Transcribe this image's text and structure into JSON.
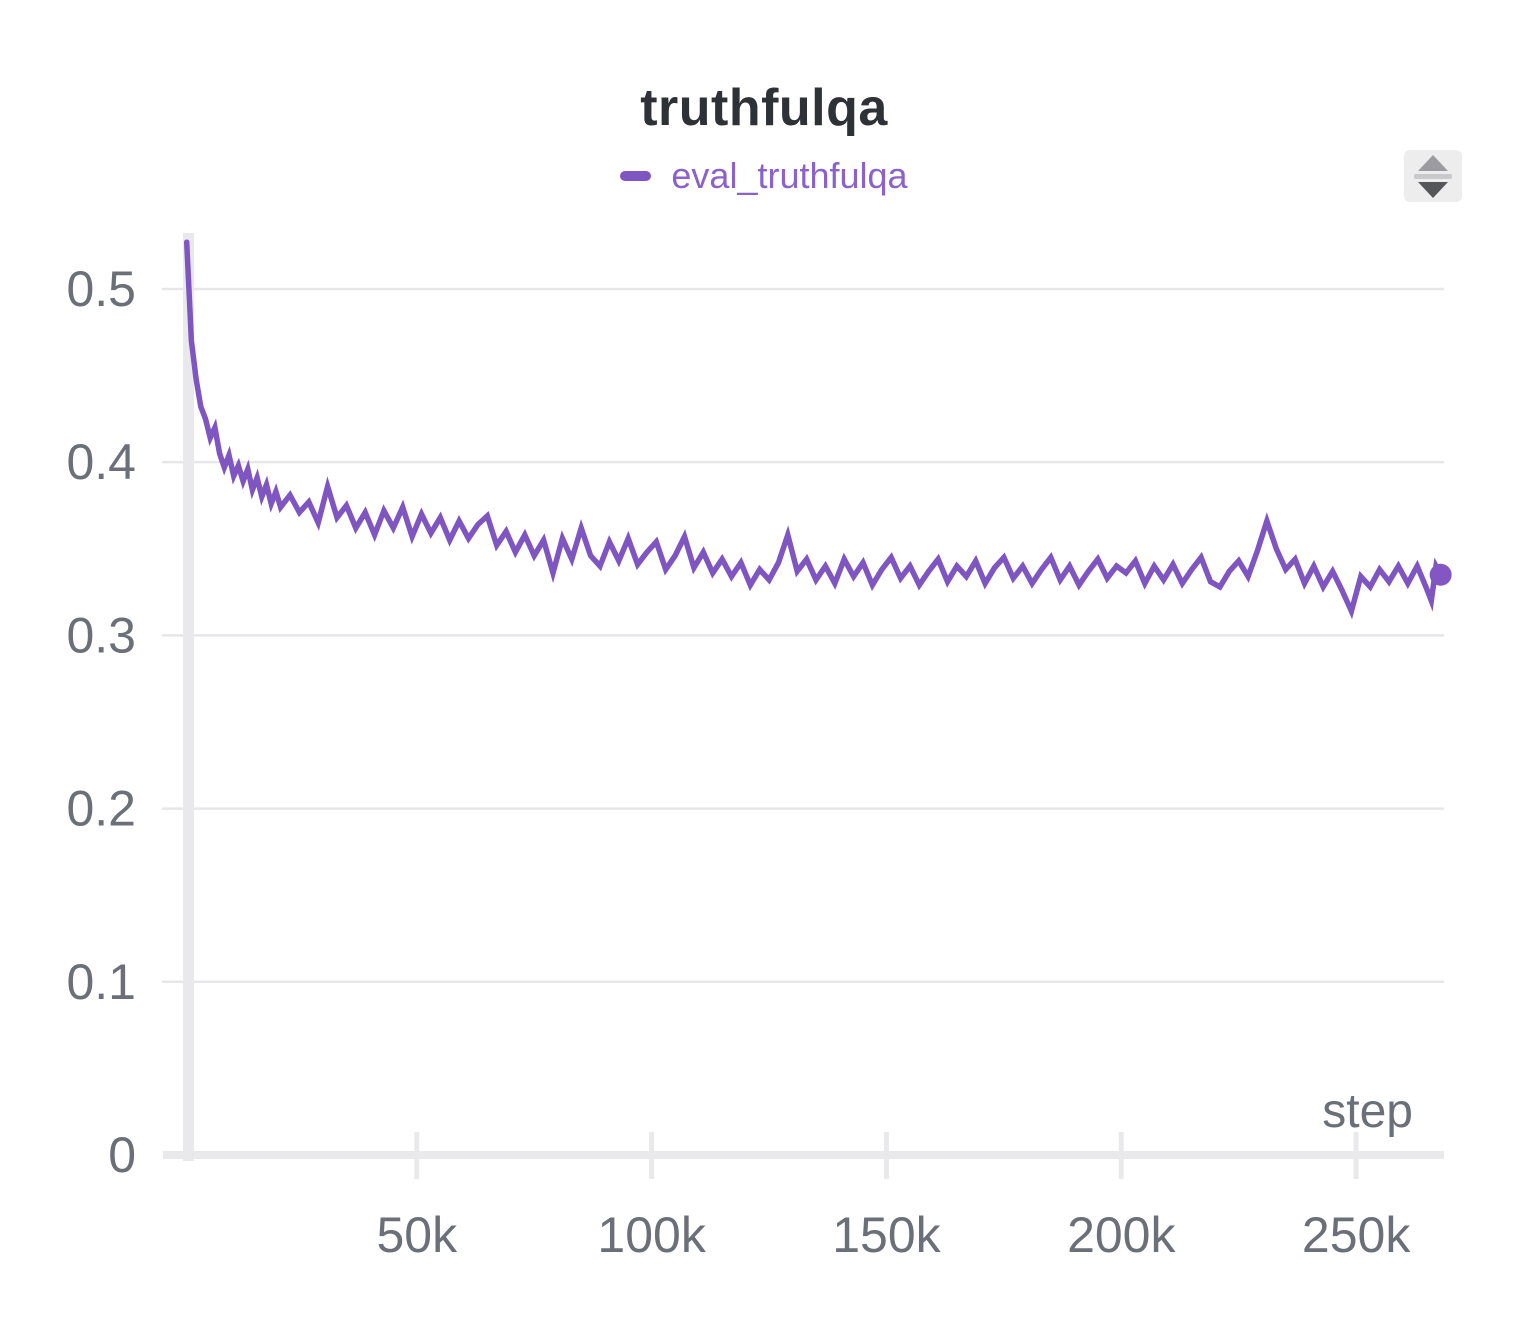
{
  "panel": {
    "title": "truthfulqa"
  },
  "legend": {
    "label": "eval_truthfulqa",
    "text_color": "#8a62ca",
    "swatch_color": "#7e55c1"
  },
  "controls": {
    "resize_icon": "sort-resize-handle"
  },
  "colors": {
    "title": "#2e3237",
    "axis_label": "#6b6f78",
    "gridline": "#e7e7e9",
    "axis_bar": "#e9e9eb",
    "line": "#7e55c1",
    "endpoint": "#8257c4",
    "icon_bg": "#ededed"
  },
  "chart_data": {
    "type": "line",
    "title": "truthfulqa",
    "xlabel": "step",
    "ylabel": "",
    "legend_position": "top-center",
    "grid": "horizontal-y",
    "xlim": [
      0,
      268500
    ],
    "ylim": [
      0,
      0.5323
    ],
    "x_ticks": [
      {
        "value": 50000,
        "label": "50k"
      },
      {
        "value": 100000,
        "label": "100k"
      },
      {
        "value": 150000,
        "label": "150k"
      },
      {
        "value": 200000,
        "label": "200k"
      },
      {
        "value": 250000,
        "label": "250k"
      }
    ],
    "y_ticks": [
      {
        "value": 0,
        "label": "0"
      },
      {
        "value": 0.1,
        "label": "0.1"
      },
      {
        "value": 0.2,
        "label": "0.2"
      },
      {
        "value": 0.3,
        "label": "0.3"
      },
      {
        "value": 0.4,
        "label": "0.4"
      },
      {
        "value": 0.5,
        "label": "0.5"
      }
    ],
    "series": [
      {
        "name": "eval_truthfulqa",
        "color": "#7e55c1",
        "end_marker": true,
        "final_value": 0.335,
        "points": [
          [
            1000,
            0.527
          ],
          [
            2000,
            0.47
          ],
          [
            3000,
            0.448
          ],
          [
            4000,
            0.432
          ],
          [
            5000,
            0.425
          ],
          [
            6000,
            0.414
          ],
          [
            7000,
            0.42
          ],
          [
            8000,
            0.405
          ],
          [
            9000,
            0.397
          ],
          [
            10000,
            0.404
          ],
          [
            11000,
            0.392
          ],
          [
            12000,
            0.398
          ],
          [
            13000,
            0.389
          ],
          [
            14000,
            0.396
          ],
          [
            15000,
            0.384
          ],
          [
            16000,
            0.391
          ],
          [
            17000,
            0.38
          ],
          [
            18000,
            0.387
          ],
          [
            19000,
            0.376
          ],
          [
            20000,
            0.383
          ],
          [
            21000,
            0.374
          ],
          [
            23000,
            0.381
          ],
          [
            25000,
            0.371
          ],
          [
            27000,
            0.377
          ],
          [
            29000,
            0.365
          ],
          [
            31000,
            0.386
          ],
          [
            33000,
            0.368
          ],
          [
            35000,
            0.375
          ],
          [
            37000,
            0.362
          ],
          [
            39000,
            0.371
          ],
          [
            41000,
            0.358
          ],
          [
            43000,
            0.372
          ],
          [
            45000,
            0.362
          ],
          [
            47000,
            0.374
          ],
          [
            49000,
            0.357
          ],
          [
            51000,
            0.37
          ],
          [
            53000,
            0.359
          ],
          [
            55000,
            0.368
          ],
          [
            57000,
            0.355
          ],
          [
            59000,
            0.366
          ],
          [
            61000,
            0.356
          ],
          [
            63000,
            0.364
          ],
          [
            65000,
            0.369
          ],
          [
            67000,
            0.352
          ],
          [
            69000,
            0.36
          ],
          [
            71000,
            0.348
          ],
          [
            73000,
            0.358
          ],
          [
            75000,
            0.346
          ],
          [
            77000,
            0.355
          ],
          [
            79000,
            0.336
          ],
          [
            81000,
            0.356
          ],
          [
            83000,
            0.344
          ],
          [
            85000,
            0.362
          ],
          [
            87000,
            0.346
          ],
          [
            89000,
            0.34
          ],
          [
            91000,
            0.354
          ],
          [
            93000,
            0.343
          ],
          [
            95000,
            0.356
          ],
          [
            97000,
            0.341
          ],
          [
            99000,
            0.348
          ],
          [
            101000,
            0.354
          ],
          [
            103000,
            0.338
          ],
          [
            105000,
            0.346
          ],
          [
            107000,
            0.357
          ],
          [
            109000,
            0.339
          ],
          [
            111000,
            0.348
          ],
          [
            113000,
            0.336
          ],
          [
            115000,
            0.344
          ],
          [
            117000,
            0.334
          ],
          [
            119000,
            0.342
          ],
          [
            121000,
            0.329
          ],
          [
            123000,
            0.338
          ],
          [
            125000,
            0.332
          ],
          [
            127000,
            0.342
          ],
          [
            129000,
            0.358
          ],
          [
            131000,
            0.337
          ],
          [
            133000,
            0.344
          ],
          [
            135000,
            0.332
          ],
          [
            137000,
            0.34
          ],
          [
            139000,
            0.33
          ],
          [
            141000,
            0.344
          ],
          [
            143000,
            0.334
          ],
          [
            145000,
            0.342
          ],
          [
            147000,
            0.329
          ],
          [
            149000,
            0.338
          ],
          [
            151000,
            0.345
          ],
          [
            153000,
            0.333
          ],
          [
            155000,
            0.34
          ],
          [
            157000,
            0.329
          ],
          [
            159000,
            0.337
          ],
          [
            161000,
            0.344
          ],
          [
            163000,
            0.331
          ],
          [
            165000,
            0.34
          ],
          [
            167000,
            0.334
          ],
          [
            169000,
            0.343
          ],
          [
            171000,
            0.33
          ],
          [
            173000,
            0.339
          ],
          [
            175000,
            0.345
          ],
          [
            177000,
            0.333
          ],
          [
            179000,
            0.34
          ],
          [
            181000,
            0.33
          ],
          [
            183000,
            0.338
          ],
          [
            185000,
            0.345
          ],
          [
            187000,
            0.332
          ],
          [
            189000,
            0.34
          ],
          [
            191000,
            0.329
          ],
          [
            193000,
            0.337
          ],
          [
            195000,
            0.344
          ],
          [
            197000,
            0.333
          ],
          [
            199000,
            0.34
          ],
          [
            201000,
            0.336
          ],
          [
            203000,
            0.343
          ],
          [
            205000,
            0.33
          ],
          [
            207000,
            0.34
          ],
          [
            209000,
            0.332
          ],
          [
            211000,
            0.341
          ],
          [
            213000,
            0.33
          ],
          [
            215000,
            0.338
          ],
          [
            217000,
            0.345
          ],
          [
            219000,
            0.331
          ],
          [
            221000,
            0.328
          ],
          [
            223000,
            0.337
          ],
          [
            225000,
            0.343
          ],
          [
            227000,
            0.334
          ],
          [
            229000,
            0.349
          ],
          [
            231000,
            0.366
          ],
          [
            233000,
            0.35
          ],
          [
            235000,
            0.338
          ],
          [
            237000,
            0.344
          ],
          [
            239000,
            0.33
          ],
          [
            241000,
            0.34
          ],
          [
            243000,
            0.328
          ],
          [
            245000,
            0.337
          ],
          [
            247000,
            0.326
          ],
          [
            249000,
            0.314
          ],
          [
            251000,
            0.334
          ],
          [
            253000,
            0.328
          ],
          [
            255000,
            0.338
          ],
          [
            257000,
            0.331
          ],
          [
            259000,
            0.34
          ],
          [
            261000,
            0.33
          ],
          [
            263000,
            0.34
          ],
          [
            265000,
            0.327
          ],
          [
            266000,
            0.32
          ],
          [
            267000,
            0.34
          ],
          [
            268000,
            0.335
          ]
        ]
      }
    ]
  }
}
